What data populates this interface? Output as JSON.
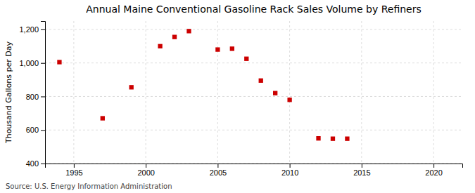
{
  "chart_data": {
    "type": "scatter",
    "title": "Annual Maine Conventional Gasoline Rack Sales Volume by Refiners",
    "y_label": "Thousand Gallons per Day",
    "source": "Source: U.S. Energy Information Administration",
    "x": [
      1994,
      1997,
      1999,
      2001,
      2002,
      2003,
      2005,
      2006,
      2007,
      2008,
      2009,
      2010,
      2012,
      2013,
      2014
    ],
    "values": [
      1005,
      670,
      855,
      1100,
      1155,
      1190,
      1080,
      1085,
      1025,
      895,
      820,
      780,
      550,
      548,
      548
    ],
    "color": "#CC0000",
    "marker": "square",
    "xlim": [
      1993,
      2022
    ],
    "ylim": [
      400,
      1250
    ],
    "xticks": [
      1995,
      2000,
      2005,
      2010,
      2015,
      2020
    ],
    "yticks": [
      400,
      600,
      800,
      {
        "value": 1000,
        "label": "1,000"
      },
      {
        "value": 1200,
        "label": "1,200"
      }
    ],
    "grid": true
  }
}
